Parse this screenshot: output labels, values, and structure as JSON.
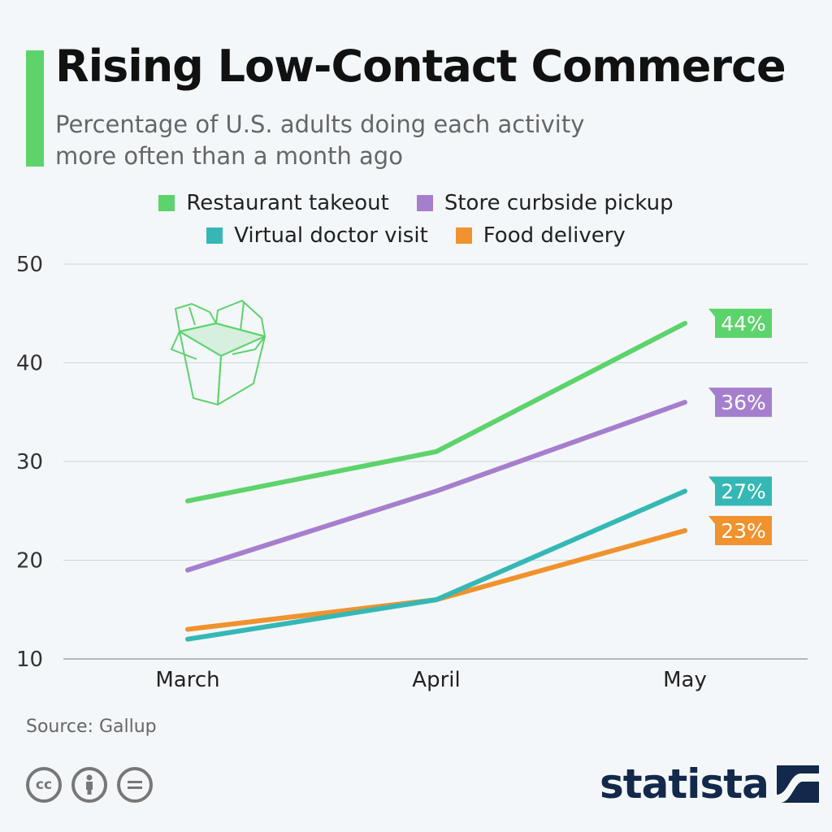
{
  "header": {
    "title": "Rising Low-Contact Commerce",
    "subtitle": "Percentage of U.S. adults doing each activity more often than a month ago"
  },
  "colors": {
    "accent": "#5dd36c",
    "restaurant_takeout": "#5dd36c",
    "store_curbside_pickup": "#a57fce",
    "virtual_doctor_visit": "#35b8b5",
    "food_delivery": "#f0922e",
    "brand": "#13294b"
  },
  "legend": [
    {
      "label": "Restaurant takeout",
      "color": "#5dd36c"
    },
    {
      "label": "Store curbside pickup",
      "color": "#a57fce"
    },
    {
      "label": "Virtual doctor visit",
      "color": "#35b8b5"
    },
    {
      "label": "Food delivery",
      "color": "#f0922e"
    }
  ],
  "chart_data": {
    "type": "line",
    "title": "Rising Low-Contact Commerce",
    "subtitle": "Percentage of U.S. adults doing each activity more often than a month ago",
    "x": [
      "March",
      "April",
      "May"
    ],
    "ylim": [
      10,
      50
    ],
    "yticks": [
      10,
      20,
      30,
      40,
      50
    ],
    "grid": true,
    "legend_position": "top",
    "series": [
      {
        "name": "Restaurant takeout",
        "color": "#5dd36c",
        "values": [
          26,
          31,
          44
        ],
        "end_label": "44%"
      },
      {
        "name": "Store curbside pickup",
        "color": "#a57fce",
        "values": [
          19,
          27,
          36
        ],
        "end_label": "36%"
      },
      {
        "name": "Virtual doctor visit",
        "color": "#35b8b5",
        "values": [
          12,
          16,
          27
        ],
        "end_label": "27%"
      },
      {
        "name": "Food delivery",
        "color": "#f0922e",
        "values": [
          13,
          16,
          23
        ],
        "end_label": "23%"
      }
    ],
    "decoration": "takeout-box-icon"
  },
  "footer": {
    "source": "Source: Gallup",
    "license_icons": [
      "creative-commons-icon",
      "attribution-icon",
      "no-derivatives-icon"
    ],
    "brand": "statista"
  }
}
